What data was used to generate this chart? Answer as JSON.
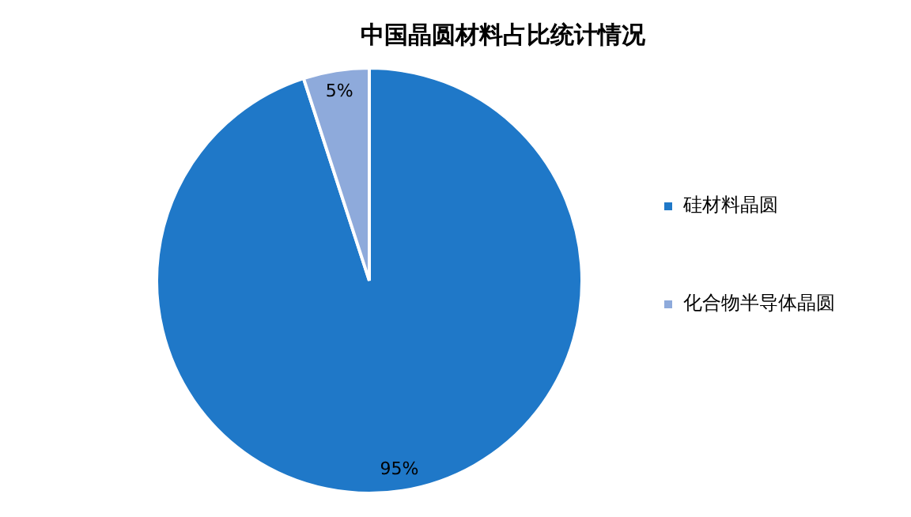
{
  "chart_data": {
    "type": "pie",
    "title": "中国晶圆材料占比统计情况",
    "categories": [
      "硅材料晶圆",
      "化合物半导体晶圆"
    ],
    "values": [
      95,
      5
    ],
    "colors": [
      "#1f78c8",
      "#8eaadb"
    ],
    "value_labels": [
      "95%",
      "5%"
    ],
    "legend": "right"
  }
}
